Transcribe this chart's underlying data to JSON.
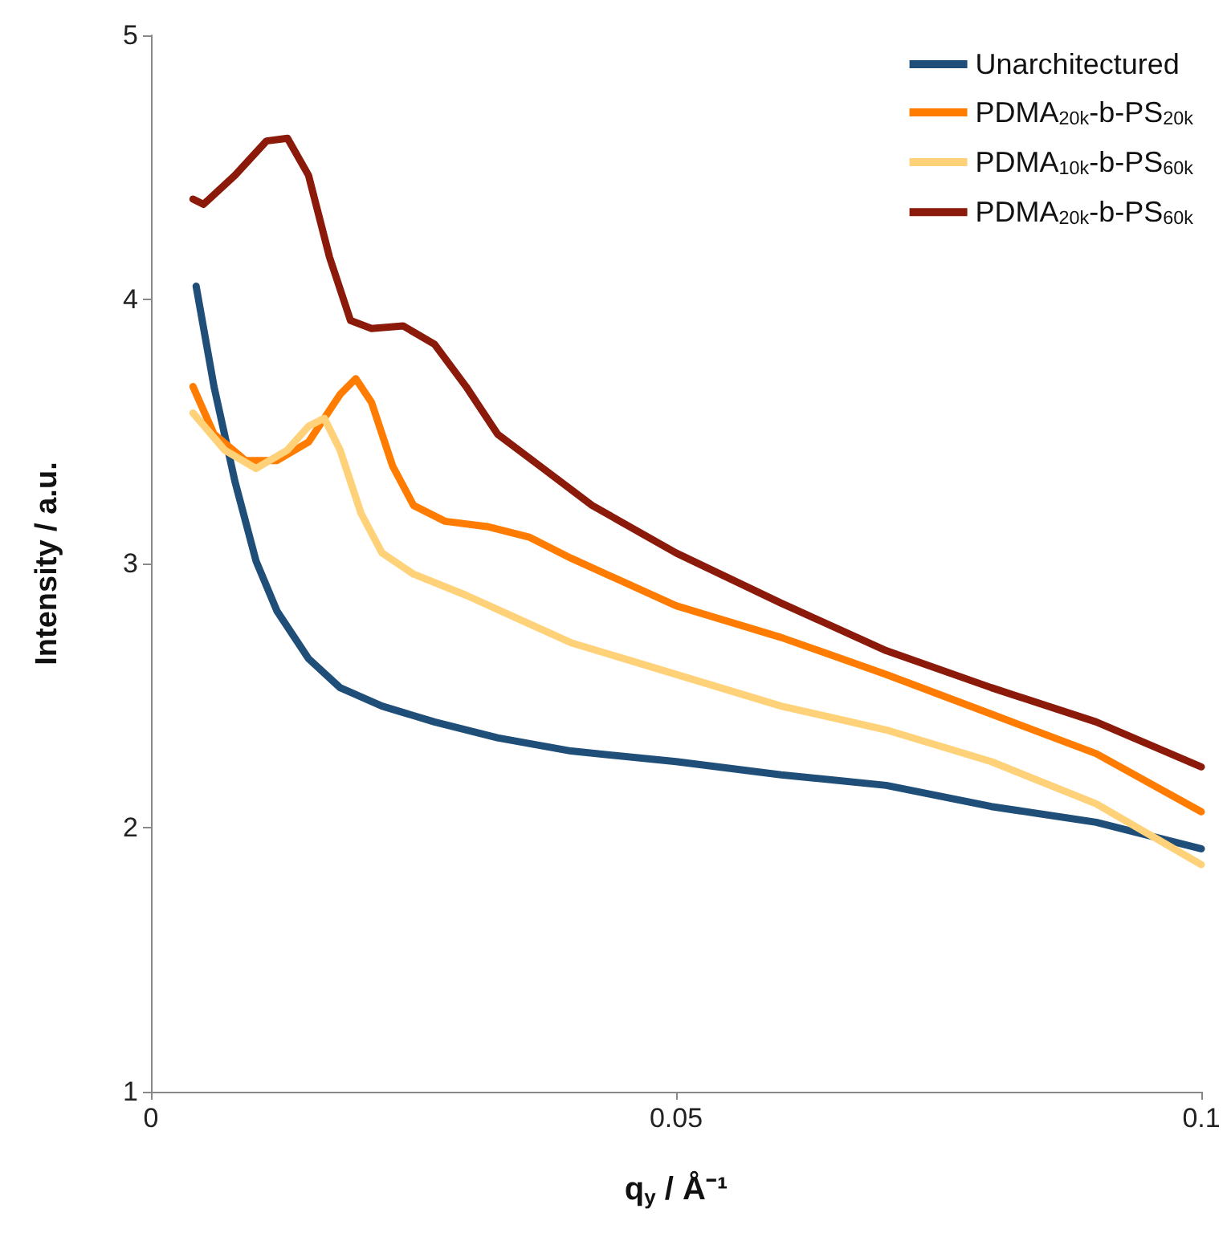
{
  "chart_data": {
    "type": "line",
    "xlabel": "q$_{y}$ / Å⁻¹",
    "ylabel": "Intensity / a.u.",
    "xlim": [
      0,
      0.1
    ],
    "xticks": [
      0,
      0.05,
      0.1
    ],
    "ylim": [
      1,
      5
    ],
    "yticks": [
      1,
      2,
      3,
      4,
      5
    ],
    "grid": false,
    "legend": "top right",
    "marker": "none",
    "line_style": "solid",
    "series": [
      {
        "name": "Unarchitectured",
        "color": "#1f4e79",
        "x": [
          0.0043,
          0.006,
          0.008,
          0.01,
          0.012,
          0.015,
          0.018,
          0.022,
          0.027,
          0.033,
          0.04,
          0.05,
          0.06,
          0.07,
          0.08,
          0.09,
          0.1
        ],
        "values": [
          4.05,
          3.67,
          3.31,
          3.01,
          2.82,
          2.64,
          2.53,
          2.46,
          2.4,
          2.34,
          2.29,
          2.25,
          2.2,
          2.16,
          2.08,
          2.02,
          1.92
        ]
      },
      {
        "name": "PDMA$_{20k}$-b-PS$_{20k}$",
        "color": "#ff7c00",
        "x": [
          0.004,
          0.006,
          0.009,
          0.012,
          0.015,
          0.018,
          0.0195,
          0.021,
          0.023,
          0.025,
          0.028,
          0.032,
          0.036,
          0.04,
          0.05,
          0.06,
          0.07,
          0.08,
          0.09,
          0.1
        ],
        "values": [
          3.67,
          3.49,
          3.39,
          3.39,
          3.46,
          3.64,
          3.7,
          3.61,
          3.37,
          3.22,
          3.16,
          3.14,
          3.1,
          3.02,
          2.84,
          2.72,
          2.58,
          2.43,
          2.28,
          2.06
        ]
      },
      {
        "name": "PDMA$_{10k}$-b-PS$_{60k}$",
        "color": "#ffd27a",
        "x": [
          0.004,
          0.007,
          0.01,
          0.013,
          0.015,
          0.0165,
          0.018,
          0.02,
          0.022,
          0.025,
          0.03,
          0.035,
          0.04,
          0.05,
          0.06,
          0.07,
          0.08,
          0.09,
          0.1
        ],
        "values": [
          3.57,
          3.43,
          3.36,
          3.43,
          3.52,
          3.55,
          3.43,
          3.19,
          3.04,
          2.96,
          2.88,
          2.79,
          2.7,
          2.58,
          2.46,
          2.37,
          2.25,
          2.09,
          1.86
        ]
      },
      {
        "name": "PDMA$_{20k}$-b-PS$_{60k}$",
        "color": "#8b1a0a",
        "x": [
          0.004,
          0.005,
          0.008,
          0.011,
          0.013,
          0.015,
          0.017,
          0.019,
          0.021,
          0.024,
          0.027,
          0.03,
          0.033,
          0.037,
          0.042,
          0.05,
          0.06,
          0.07,
          0.08,
          0.09,
          0.1
        ],
        "values": [
          4.38,
          4.36,
          4.47,
          4.6,
          4.61,
          4.47,
          4.16,
          3.92,
          3.89,
          3.9,
          3.83,
          3.67,
          3.49,
          3.37,
          3.22,
          3.04,
          2.85,
          2.67,
          2.53,
          2.4,
          2.23
        ]
      }
    ]
  }
}
